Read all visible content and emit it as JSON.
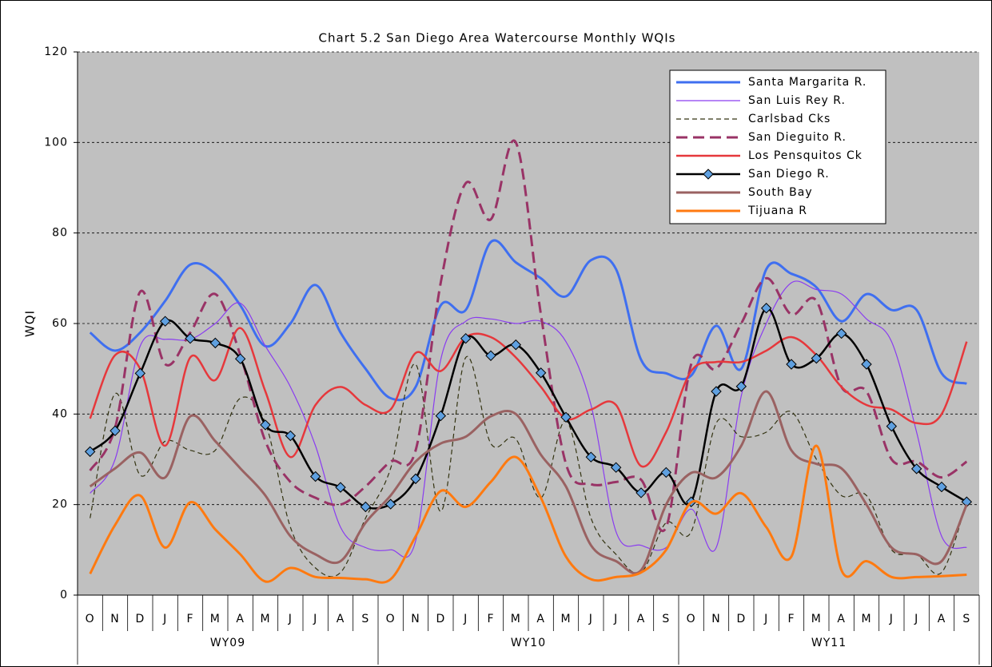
{
  "chart_data": {
    "type": "line",
    "title": "Chart 5.2 San Diego Area Watercourse Monthly WQIs",
    "y_label": "WQI",
    "categories": [
      "O",
      "N",
      "D",
      "J",
      "F",
      "M",
      "A",
      "M",
      "J",
      "J",
      "A",
      "S",
      "O",
      "N",
      "D",
      "J",
      "F",
      "M",
      "A",
      "M",
      "J",
      "J",
      "A",
      "S",
      "O",
      "N",
      "D",
      "J",
      "F",
      "M",
      "A",
      "M",
      "J",
      "J",
      "A",
      "S"
    ],
    "groups": [
      "WY09",
      "WY10",
      "WY11"
    ],
    "ylim": [
      0,
      120
    ],
    "yticks": [
      0,
      20,
      40,
      60,
      80,
      100,
      120
    ],
    "grid": true,
    "smooth": true,
    "legend": "top-right",
    "series": [
      {
        "name": "Santa Margarita R.",
        "color": "#3f6ff0",
        "width": 3,
        "style": "solid",
        "values": [
          58,
          54,
          58,
          65,
          73,
          71,
          64,
          55,
          60,
          68.5,
          58,
          50,
          43.5,
          46,
          64,
          63,
          78,
          73.5,
          70,
          66,
          74,
          72,
          52,
          49,
          48.5,
          59.5,
          50,
          72,
          71,
          68,
          60.5,
          66.5,
          63,
          63,
          49,
          46.7
        ]
      },
      {
        "name": "San Luis Rey R.",
        "color": "#8a3cf0",
        "width": 1.2,
        "style": "solid",
        "values": [
          22.5,
          30,
          55,
          56.5,
          56.5,
          60,
          64.5,
          55,
          46,
          33,
          15,
          10.5,
          10,
          12,
          52,
          60.5,
          61,
          60,
          60.5,
          56,
          42,
          14,
          11,
          10.5,
          19,
          10.5,
          44,
          60,
          69,
          67.5,
          66.5,
          61,
          56,
          36,
          13,
          10.5
        ]
      },
      {
        "name": "Carlsbad Cks",
        "color": "#333311",
        "width": 1.2,
        "style": "dashed",
        "values": [
          17,
          44.5,
          26.5,
          34,
          32,
          32,
          43.5,
          38,
          15,
          6,
          5,
          17,
          28,
          51,
          18.5,
          52.5,
          33.5,
          34.5,
          21.5,
          38.5,
          17,
          9,
          5,
          16,
          14,
          38,
          35,
          36,
          40.5,
          30,
          22,
          22,
          10,
          9,
          5,
          20.5
        ]
      },
      {
        "name": "San Dieguito R.",
        "color": "#993366",
        "width": 3,
        "style": "dashed",
        "values": [
          27.5,
          37,
          67,
          51,
          58,
          66.5,
          53,
          34,
          25,
          21.5,
          20,
          24,
          29.5,
          32,
          69,
          91,
          83,
          100,
          62,
          29,
          24.5,
          25,
          25.5,
          15,
          51,
          50,
          60,
          70,
          62,
          65,
          46,
          45,
          30,
          29.5,
          26,
          29.5
        ]
      },
      {
        "name": "Los Pensquitos Ck",
        "color": "#e6383c",
        "width": 2.5,
        "style": "solid",
        "values": [
          39,
          53,
          50,
          33,
          52.5,
          47.5,
          59,
          45,
          30.5,
          42,
          46,
          42,
          41,
          53.5,
          49.5,
          57,
          57,
          52.5,
          46,
          39,
          41,
          42,
          28.5,
          36,
          49.5,
          51.5,
          51.5,
          54,
          57,
          53,
          46,
          42,
          41,
          38,
          40,
          56
        ]
      },
      {
        "name": "San Diego R.",
        "color": "#000000",
        "width": 2.5,
        "style": "solid",
        "marker": "diamond",
        "marker_color": "#5fa0e0",
        "values": [
          31.7,
          36.3,
          49,
          60.5,
          56.7,
          55.7,
          52.2,
          37.6,
          35.2,
          26.2,
          23.8,
          19.5,
          20.1,
          25.7,
          39.6,
          56.7,
          52.9,
          55.3,
          49.1,
          39.3,
          30.5,
          28.2,
          22.6,
          27.1,
          20.6,
          45,
          46.1,
          63.4,
          51,
          52.3,
          57.8,
          51,
          37.3,
          27.9,
          23.9,
          20.6
        ]
      },
      {
        "name": "South Bay",
        "color": "#9a6262",
        "width": 3,
        "style": "solid",
        "values": [
          24,
          28,
          31.5,
          26,
          39.5,
          34,
          28,
          22,
          13,
          9,
          7.5,
          16,
          22,
          29.5,
          33.5,
          35,
          39.5,
          40,
          31,
          24,
          11,
          7.5,
          5.5,
          20,
          27,
          26,
          33,
          45,
          32,
          29,
          28,
          20,
          10.5,
          9,
          7.5,
          20
        ]
      },
      {
        "name": "Tijuana R",
        "color": "#ff7a10",
        "width": 3,
        "style": "solid",
        "values": [
          4.7,
          15.5,
          22,
          10.5,
          20.5,
          14.5,
          9,
          3,
          6,
          4,
          3.8,
          3.5,
          3.5,
          13,
          23,
          19.5,
          25,
          30.5,
          21.5,
          8.5,
          3.5,
          4,
          5,
          10,
          20.5,
          18,
          22.5,
          15,
          8.5,
          33,
          5.5,
          7.5,
          4,
          4,
          4.2,
          4.5
        ]
      }
    ]
  }
}
